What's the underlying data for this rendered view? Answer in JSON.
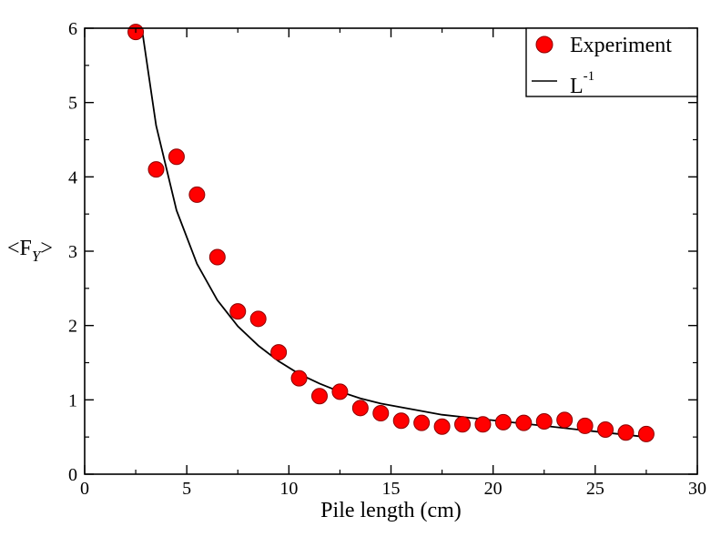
{
  "chart_data": {
    "type": "scatter",
    "title": "",
    "xlabel": "Pile length (cm)",
    "ylabel_main": "<F",
    "ylabel_sub": "Y",
    "ylabel_end": ">",
    "xlim": [
      0,
      30
    ],
    "ylim": [
      0,
      6
    ],
    "xticks": [
      0,
      5,
      10,
      15,
      20,
      25,
      30
    ],
    "yticks": [
      0,
      1,
      2,
      3,
      4,
      5,
      6
    ],
    "grid": false,
    "legend_position": "top-right",
    "series": [
      {
        "name": "Experiment",
        "kind": "points",
        "color": "#ff0000",
        "x": [
          2.5,
          3.5,
          4.5,
          5.5,
          6.5,
          7.5,
          8.5,
          9.5,
          10.5,
          11.5,
          12.5,
          13.5,
          14.5,
          15.5,
          16.5,
          17.5,
          18.5,
          19.5,
          20.5,
          21.5,
          22.5,
          23.5,
          24.5,
          25.5,
          26.5,
          27.5
        ],
        "y": [
          5.95,
          4.1,
          4.27,
          3.76,
          2.92,
          2.19,
          2.09,
          1.64,
          1.29,
          1.05,
          1.11,
          0.89,
          0.82,
          0.72,
          0.69,
          0.64,
          0.67,
          0.67,
          0.7,
          0.69,
          0.71,
          0.73,
          0.65,
          0.6,
          0.56,
          0.54
        ]
      },
      {
        "name_base": "L",
        "name_sup": "-1",
        "kind": "line",
        "color": "#000000",
        "x": [
          2.8,
          3.5,
          4.5,
          5.5,
          6.5,
          7.5,
          8.5,
          9.5,
          10.5,
          11.5,
          12.5,
          13.5,
          14.5,
          15.5,
          16.5,
          17.5,
          18.5,
          19.5,
          20.5,
          21.5,
          22.5,
          23.5,
          24.5,
          25.5,
          26.5,
          27.5
        ],
        "y": [
          6.0,
          4.69,
          3.55,
          2.83,
          2.34,
          1.99,
          1.73,
          1.52,
          1.35,
          1.22,
          1.11,
          1.02,
          0.95,
          0.9,
          0.85,
          0.8,
          0.77,
          0.74,
          0.71,
          0.68,
          0.65,
          0.62,
          0.59,
          0.56,
          0.53,
          0.5
        ]
      }
    ]
  }
}
